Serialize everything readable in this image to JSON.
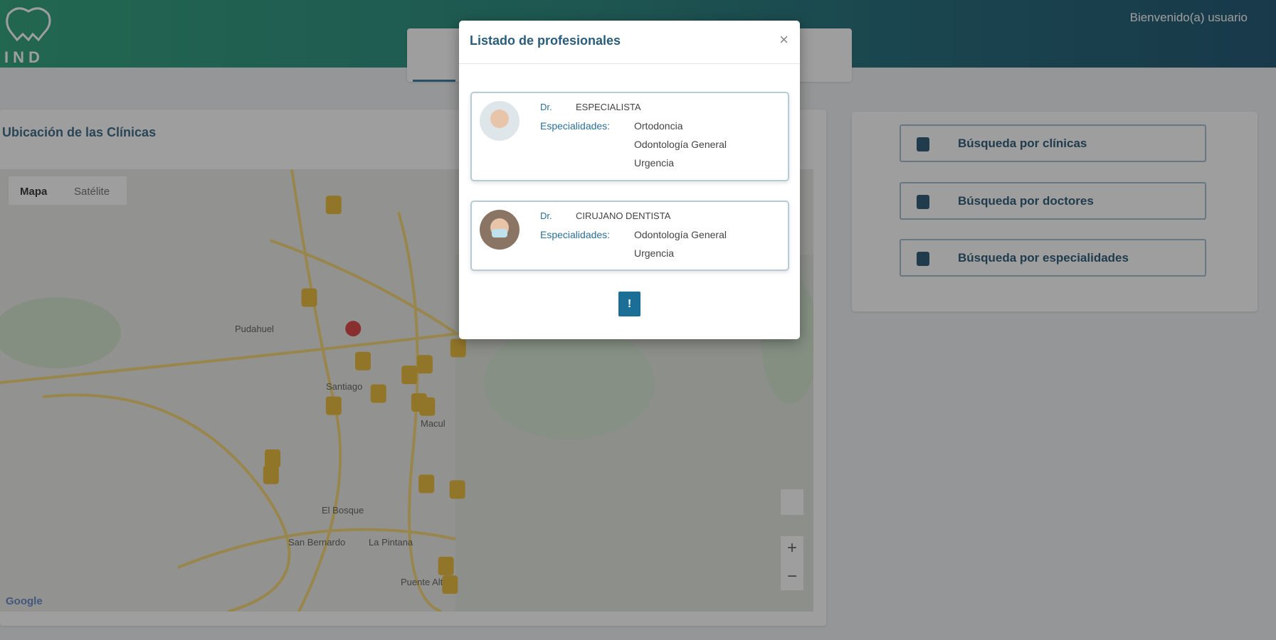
{
  "header": {
    "logo_text": "IND",
    "welcome": "Bienvenido(a) usuario"
  },
  "clinics_card": {
    "title": "Ubicación de las Clínicas"
  },
  "map": {
    "map_type_buttons": [
      "Mapa",
      "Satélite"
    ],
    "place_labels": [
      "Pudahuel",
      "Santiago",
      "Macul",
      "El Bosque",
      "San Bernardo",
      "La Pintana",
      "Puente Alto"
    ],
    "zoom_controls": [
      "+",
      "−"
    ],
    "attribution": "Google"
  },
  "side_menu": [
    "Búsqueda por clínicas",
    "Búsqueda por doctores",
    "Búsqueda por especialidades"
  ],
  "modal": {
    "title": "Listado de profesionales",
    "close": "×",
    "professionals": [
      {
        "prefix": "Dr.",
        "name": "ESPECIALISTA",
        "specialties_label": "Especialidades:",
        "specialties": [
          "Ortodoncia",
          "Odontología General",
          "Urgencia"
        ]
      },
      {
        "prefix": "Dr.",
        "name": "CIRUJANO DENTISTA",
        "specialties_label": "Especialidades:",
        "specialties": [
          "Odontología General",
          "Urgencia"
        ]
      }
    ],
    "button": "!"
  }
}
